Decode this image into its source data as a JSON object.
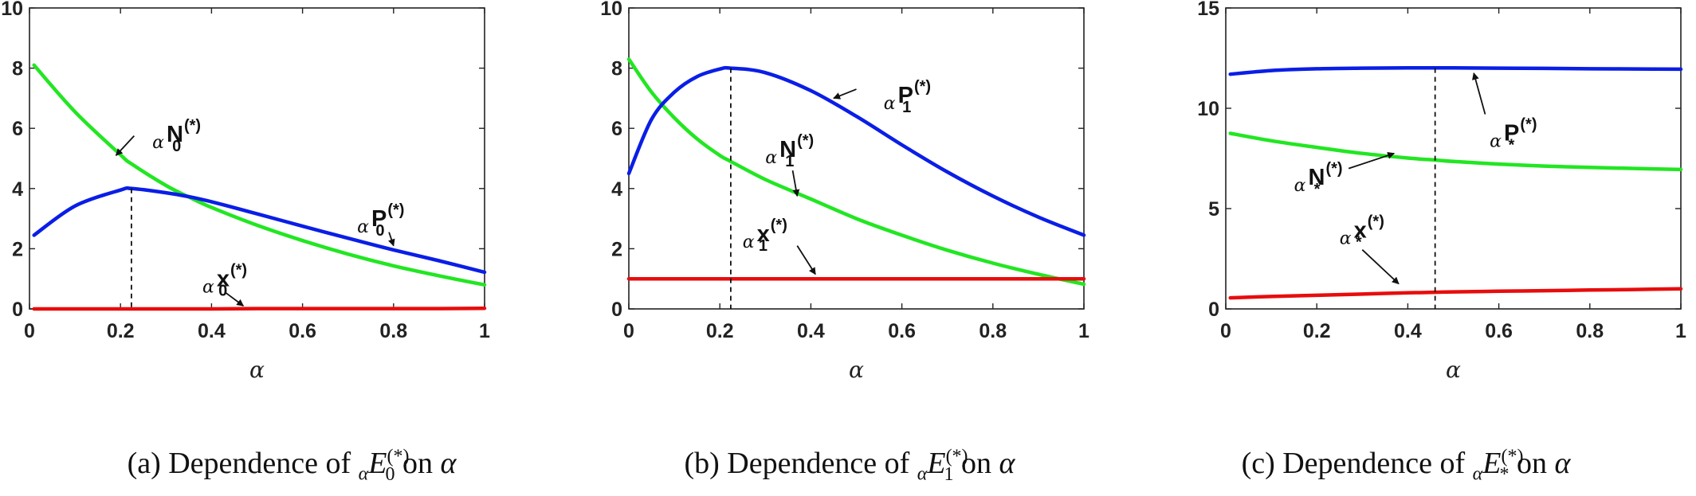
{
  "colors": {
    "P": "#0a1ee6",
    "N": "#22e622",
    "x": "#e80c0c"
  },
  "chart_data": [
    {
      "type": "line",
      "id": "a",
      "caption": {
        "prefix": "(a) Dependence of ",
        "alpha_pre": "α",
        "E": "E",
        "sub": "0",
        "sup": "(*)",
        "suffix": " on ",
        "var": "α"
      },
      "xlabel": "α",
      "xlim": [
        0,
        1
      ],
      "ylim": [
        0,
        10
      ],
      "xticks": [
        "0",
        "0.2",
        "0.4",
        "0.6",
        "0.8",
        "1"
      ],
      "yticks": [
        "0",
        "2",
        "4",
        "6",
        "8",
        "10"
      ],
      "x": [
        0.01,
        0.1,
        0.2,
        0.224,
        0.3,
        0.35,
        0.4,
        0.5,
        0.6,
        0.7,
        0.8,
        0.9,
        1.0
      ],
      "series": [
        {
          "key": "N",
          "values": [
            8.1,
            6.55,
            5.12,
            4.82,
            4.1,
            3.72,
            3.37,
            2.78,
            2.27,
            1.82,
            1.43,
            1.1,
            0.8
          ]
        },
        {
          "key": "P",
          "values": [
            2.45,
            3.42,
            3.95,
            4.0,
            3.86,
            3.73,
            3.56,
            3.16,
            2.75,
            2.35,
            1.96,
            1.6,
            1.22
          ]
        },
        {
          "key": "x",
          "values": [
            0.0,
            0.0,
            0.0,
            0.0,
            0.0,
            0.0,
            0.0,
            0.01,
            0.01,
            0.01,
            0.01,
            0.01,
            0.02
          ]
        }
      ],
      "vline": {
        "x": 0.224,
        "y": 4.0
      },
      "annotations": [
        {
          "pre": "α",
          "main": "N",
          "sub": "0",
          "sup": "(*)",
          "tx": 0.27,
          "ty": 5.55,
          "ax": 0.23,
          "ay": 5.75,
          "hx": 0.19,
          "hy": 5.1
        },
        {
          "pre": "α",
          "main": "P",
          "sub": "0",
          "sup": "(*)",
          "tx": 0.72,
          "ty": 2.75,
          "ax": 0.79,
          "ay": 2.55,
          "hx": 0.8,
          "hy": 2.1
        },
        {
          "pre": "α",
          "main": "x",
          "sub": "0",
          "sup": "(*)",
          "tx": 0.38,
          "ty": 0.75,
          "ax": 0.43,
          "ay": 0.55,
          "hx": 0.47,
          "hy": 0.1
        }
      ]
    },
    {
      "type": "line",
      "id": "b",
      "caption": {
        "prefix": "(b) Dependence of ",
        "alpha_pre": "α",
        "E": "E",
        "sub": "1",
        "sup": "(*)",
        "suffix": " on ",
        "var": "α"
      },
      "xlabel": "α",
      "xlim": [
        0,
        1
      ],
      "ylim": [
        0,
        10
      ],
      "xticks": [
        "0",
        "0.2",
        "0.4",
        "0.6",
        "0.8",
        "1"
      ],
      "yticks": [
        "0",
        "2",
        "4",
        "6",
        "8",
        "10"
      ],
      "x": [
        0.0,
        0.05,
        0.1,
        0.15,
        0.2,
        0.224,
        0.3,
        0.4,
        0.5,
        0.6,
        0.7,
        0.8,
        0.9,
        1.0
      ],
      "series": [
        {
          "key": "N",
          "values": [
            8.3,
            7.2,
            6.35,
            5.65,
            5.1,
            4.9,
            4.3,
            3.65,
            3.0,
            2.45,
            1.95,
            1.52,
            1.15,
            0.82
          ]
        },
        {
          "key": "P",
          "values": [
            4.5,
            6.3,
            7.2,
            7.72,
            7.97,
            8.0,
            7.85,
            7.25,
            6.4,
            5.45,
            4.55,
            3.75,
            3.05,
            2.45
          ]
        },
        {
          "key": "x",
          "values": [
            1.0,
            1.0,
            1.0,
            1.0,
            1.0,
            1.0,
            1.0,
            1.0,
            1.0,
            1.0,
            1.0,
            1.0,
            1.0,
            1.0
          ]
        }
      ],
      "vline": {
        "x": 0.224,
        "y": 8.0
      },
      "annotations": [
        {
          "pre": "α",
          "main": "P",
          "sub": "1",
          "sup": "(*)",
          "tx": 0.56,
          "ty": 6.85,
          "ax": 0.5,
          "ay": 7.3,
          "hx": 0.45,
          "hy": 7.0
        },
        {
          "pre": "α",
          "main": "N",
          "sub": "1",
          "sup": "(*)",
          "tx": 0.3,
          "ty": 5.05,
          "ax": 0.36,
          "ay": 4.6,
          "hx": 0.37,
          "hy": 3.75
        },
        {
          "pre": "α",
          "main": "x",
          "sub": "1",
          "sup": "(*)",
          "tx": 0.25,
          "ty": 2.25,
          "ax": 0.37,
          "ay": 2.1,
          "hx": 0.41,
          "hy": 1.15
        }
      ]
    },
    {
      "type": "line",
      "id": "c",
      "caption": {
        "prefix": "(c) Dependence of ",
        "alpha_pre": "α",
        "E": "E",
        "sub": "*",
        "sup": "(*)",
        "suffix": " on ",
        "var": "α"
      },
      "xlabel": "α",
      "xlim": [
        0,
        1
      ],
      "ylim": [
        0,
        15
      ],
      "xticks": [
        "0",
        "0.2",
        "0.4",
        "0.6",
        "0.8",
        "1"
      ],
      "yticks": [
        "0",
        "5",
        "10",
        "15"
      ],
      "x": [
        0.01,
        0.1,
        0.2,
        0.3,
        0.4,
        0.46,
        0.5,
        0.6,
        0.7,
        0.8,
        0.9,
        1.0
      ],
      "series": [
        {
          "key": "P",
          "values": [
            11.7,
            11.88,
            11.97,
            12.0,
            12.01,
            12.01,
            12.01,
            12.0,
            11.99,
            11.97,
            11.96,
            11.95
          ]
        },
        {
          "key": "N",
          "values": [
            8.75,
            8.38,
            8.05,
            7.75,
            7.52,
            7.42,
            7.35,
            7.22,
            7.12,
            7.05,
            7.0,
            6.95
          ]
        },
        {
          "key": "x",
          "values": [
            0.55,
            0.62,
            0.68,
            0.74,
            0.8,
            0.83,
            0.85,
            0.88,
            0.91,
            0.94,
            0.97,
            1.0
          ]
        }
      ],
      "vline": {
        "x": 0.46,
        "y": 12.0
      },
      "annotations": [
        {
          "pre": "α",
          "main": "P",
          "sub": "*",
          "sup": "(*)",
          "tx": 0.58,
          "ty": 8.4,
          "ax": 0.57,
          "ay": 9.7,
          "hx": 0.545,
          "hy": 11.75
        },
        {
          "pre": "α",
          "main": "N",
          "sub": "*",
          "sup": "(*)",
          "tx": 0.15,
          "ty": 6.2,
          "ax": 0.27,
          "ay": 7.0,
          "hx": 0.37,
          "hy": 7.75
        },
        {
          "pre": "α",
          "main": "x",
          "sub": "*",
          "sup": "(*)",
          "tx": 0.25,
          "ty": 3.55,
          "ax": 0.3,
          "ay": 2.95,
          "hx": 0.38,
          "hy": 1.25
        }
      ]
    }
  ]
}
